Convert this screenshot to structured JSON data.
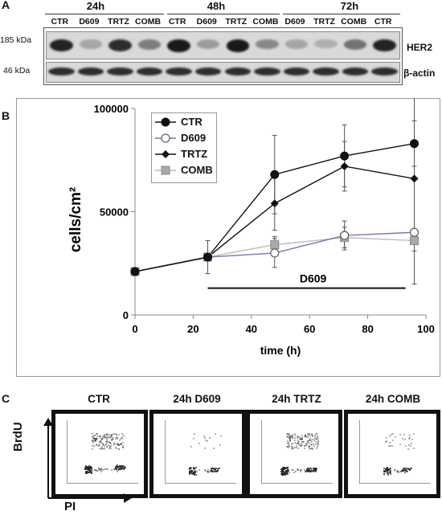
{
  "panels": {
    "a": "A",
    "b": "B",
    "c": "C"
  },
  "blot": {
    "timepoints": [
      "24h",
      "48h",
      "72h"
    ],
    "lanes": [
      "CTR",
      "D609",
      "TRTZ",
      "COMB",
      "CTR",
      "D609",
      "TRTZ",
      "COMB",
      "D609",
      "TRTZ",
      "COMB",
      "CTR"
    ],
    "markers": [
      "185 kDa",
      "46 kDa"
    ],
    "proteins": [
      "HER2",
      "β-actin"
    ],
    "her2_intensity": [
      0.9,
      0.25,
      0.85,
      0.45,
      0.95,
      0.3,
      0.95,
      0.4,
      0.25,
      0.2,
      0.5,
      0.9
    ],
    "actin_intensity": [
      0.85,
      0.85,
      0.85,
      0.85,
      0.85,
      0.85,
      0.85,
      0.85,
      0.85,
      0.85,
      0.85,
      0.85
    ]
  },
  "chart_data": {
    "type": "line",
    "xlabel": "time (h)",
    "ylabel": "cells/cm²",
    "xlim": [
      0,
      100
    ],
    "ylim": [
      0,
      100000
    ],
    "xticks": [
      "0",
      "20",
      "40",
      "60",
      "80",
      "100"
    ],
    "yticks": [
      "0",
      "50000",
      "100000"
    ],
    "legend_position": "top-left",
    "series": [
      {
        "name": "CTR",
        "marker": "circle",
        "color": "#111111",
        "line": "#111111",
        "x": [
          0,
          25,
          48,
          72,
          96
        ],
        "y": [
          21000,
          28000,
          68000,
          77000,
          83000
        ],
        "err": [
          0,
          8000,
          19000,
          15000,
          11000
        ]
      },
      {
        "name": "D609",
        "marker": "circle-open",
        "color": "#d0d0d0",
        "line": "#7d74b4",
        "x": [
          0,
          25,
          48,
          72,
          96
        ],
        "y": [
          21000,
          28000,
          30000,
          38500,
          40000
        ],
        "err": [
          0,
          0,
          7000,
          7000,
          0
        ]
      },
      {
        "name": "TRTZ",
        "marker": "diamond",
        "color": "#111111",
        "line": "#111111",
        "x": [
          0,
          25,
          48,
          72,
          96
        ],
        "y": [
          21000,
          28000,
          54000,
          72000,
          66000
        ],
        "err": [
          0,
          0,
          13000,
          12000,
          51000
        ]
      },
      {
        "name": "COMB",
        "marker": "square",
        "color": "#aaaaaa",
        "line": "#bbbbbb",
        "x": [
          0,
          25,
          48,
          72,
          96
        ],
        "y": [
          21000,
          28000,
          34000,
          37500,
          36000
        ],
        "err": [
          0,
          0,
          4000,
          5000,
          5000
        ]
      }
    ],
    "annotation": {
      "label": "D609",
      "x_start": 25,
      "x_end": 93,
      "y": 13000
    }
  },
  "flow": {
    "titles": [
      "CTR",
      "24h D609",
      "24h TRTZ",
      "24h COMB"
    ],
    "y_axis": "BrdU",
    "x_axis": "PI"
  }
}
